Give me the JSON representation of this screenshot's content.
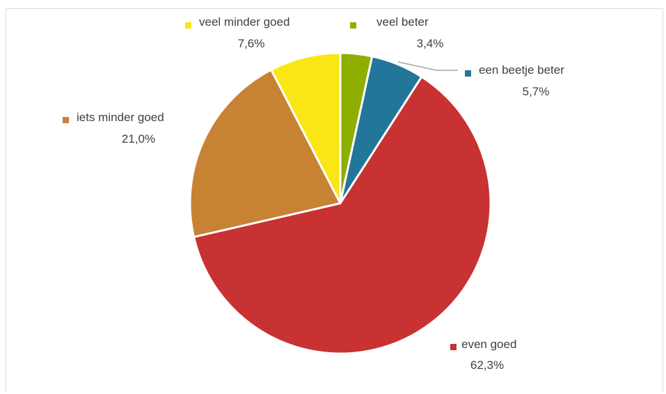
{
  "chart_data": {
    "type": "pie",
    "slices": [
      {
        "label": "veel beter",
        "value": 3.4,
        "value_label": "3,4%",
        "color": "#8faf00"
      },
      {
        "label": "een beetje beter",
        "value": 5.7,
        "value_label": "5,7%",
        "color": "#22769a"
      },
      {
        "label": "even goed",
        "value": 62.3,
        "value_label": "62,3%",
        "color": "#c83232"
      },
      {
        "label": "iets minder goed",
        "value": 21.0,
        "value_label": "21,0%",
        "color": "#c88233"
      },
      {
        "label": "veel minder goed",
        "value": 7.6,
        "value_label": "7,6%",
        "color": "#fae614"
      }
    ],
    "start_angle_deg": 0,
    "direction": "clockwise",
    "data_labels": "outside with legend key"
  }
}
